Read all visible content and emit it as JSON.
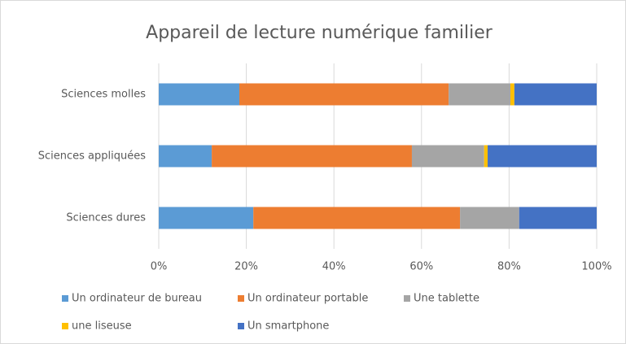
{
  "chart_data": {
    "type": "bar",
    "orientation": "horizontal",
    "stacked": true,
    "title": "Appareil de lecture numérique familier",
    "categories": [
      "Sciences molles",
      "Sciences appliquées",
      "Sciences dures"
    ],
    "series": [
      {
        "name": "Un ordinateur de bureau",
        "color": "#5b9bd5",
        "values": [
          18.4,
          12.1,
          21.6
        ]
      },
      {
        "name": "Un ordinateur portable",
        "color": "#ed7d31",
        "values": [
          47.8,
          45.7,
          47.2
        ]
      },
      {
        "name": "Une tablette",
        "color": "#a5a5a5",
        "values": [
          14.1,
          16.5,
          13.5
        ]
      },
      {
        "name": "une liseuse",
        "color": "#ffc000",
        "values": [
          0.9,
          0.8,
          0
        ]
      },
      {
        "name": "Un smartphone",
        "color": "#4472c4",
        "values": [
          18.8,
          24.9,
          17.7
        ]
      }
    ],
    "xlim": [
      0,
      100
    ],
    "xticks": [
      {
        "value": 0,
        "label": "0%"
      },
      {
        "value": 20,
        "label": "20%"
      },
      {
        "value": 40,
        "label": "40%"
      },
      {
        "value": 60,
        "label": "60%"
      },
      {
        "value": 80,
        "label": "80%"
      },
      {
        "value": 100,
        "label": "100%"
      }
    ],
    "grid": true,
    "legend": "bottom"
  }
}
